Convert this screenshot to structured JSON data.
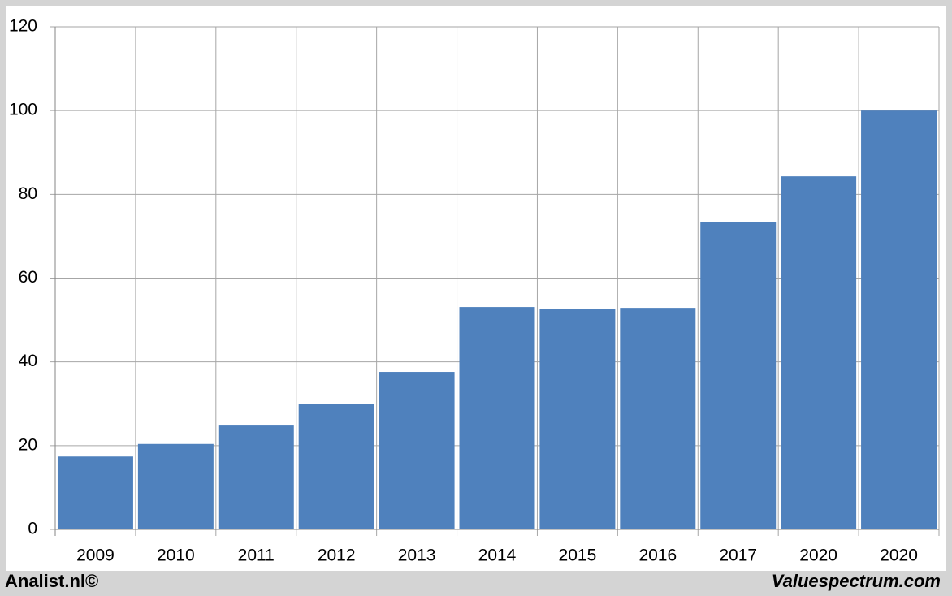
{
  "chart_data": {
    "type": "bar",
    "categories": [
      "2009",
      "2010",
      "2011",
      "2012",
      "2013",
      "2014",
      "2015",
      "2016",
      "2017",
      "2020",
      "2020"
    ],
    "values": [
      17.4,
      20.4,
      24.8,
      30.0,
      37.6,
      53.1,
      52.7,
      52.9,
      73.3,
      84.3,
      100.0
    ],
    "color": "#4f81bd",
    "ylim": [
      0,
      120
    ],
    "yticks": [
      0,
      20,
      40,
      60,
      80,
      100,
      120
    ],
    "grid": true
  },
  "footer": {
    "left": "Analist.nl©",
    "right": "Valuespectrum.com"
  }
}
